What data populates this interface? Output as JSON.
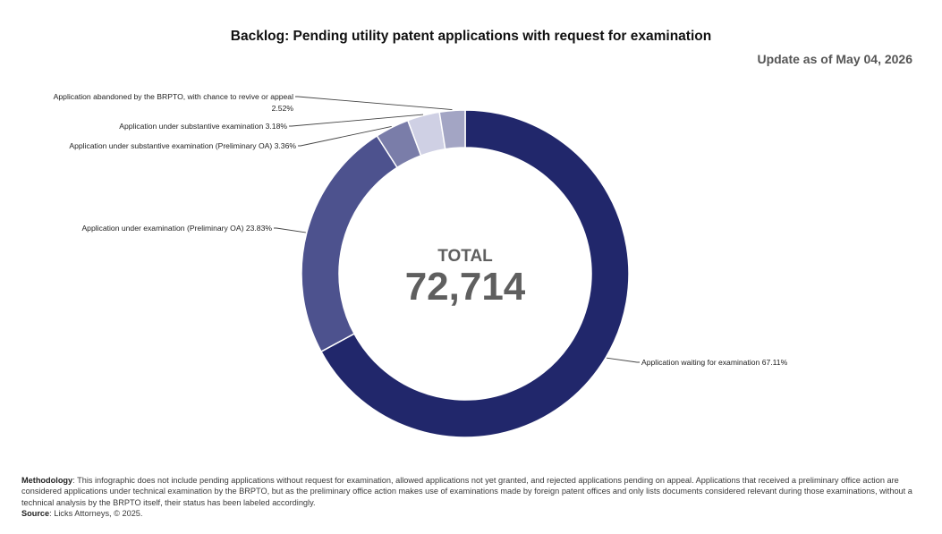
{
  "title": "Backlog: Pending utility patent applications with request for examination",
  "update": "Update as of May 04, 2026",
  "chart_data": {
    "type": "pie",
    "variant": "donut",
    "title": "Backlog: Pending utility patent applications with request for examination",
    "center_caption": "TOTAL",
    "center_value": "72,714",
    "slices": [
      {
        "name": "Application waiting for examination",
        "value": 67.11,
        "label": "Application waiting for examination 67.11%",
        "color": "#21276b"
      },
      {
        "name": "Application under examination (Preliminary OA)",
        "value": 23.83,
        "label": "Application under examination (Preliminary OA) 23.83%",
        "color": "#4d528e"
      },
      {
        "name": "Application under substantive examination (Preliminary OA)",
        "value": 3.36,
        "label": "Application under substantive examination (Preliminary OA) 3.36%",
        "color": "#7a7da9"
      },
      {
        "name": "Application under substantive examination",
        "value": 3.18,
        "label": "Application under substantive examination 3.18%",
        "color": "#cfd0e4"
      },
      {
        "name": "Application abandoned by the BRPTO, with chance to revive or appeal",
        "value": 2.52,
        "label": "Application abandoned by the BRPTO, with chance to revive or appeal",
        "label_line2": "2.52%",
        "color": "#a3a5c4"
      }
    ],
    "legend": "none",
    "start": "top",
    "direction": "clockwise"
  },
  "footer": {
    "methodology_label": "Methodology",
    "methodology_text": ": This infographic does not include pending applications without request for examination, allowed applications not yet granted, and rejected applications pending on appeal. Applications that received a preliminary office action are considered applications under technical examination by the BRPTO, but as the preliminary office action makes use of examinations made by foreign patent offices and only lists documents considered relevant during those examinations, without a technical analysis by the BRPTO itself, their status has been labeled accordingly.",
    "source_label": "Source",
    "source_text": ": Licks Attorneys, © 2025."
  }
}
